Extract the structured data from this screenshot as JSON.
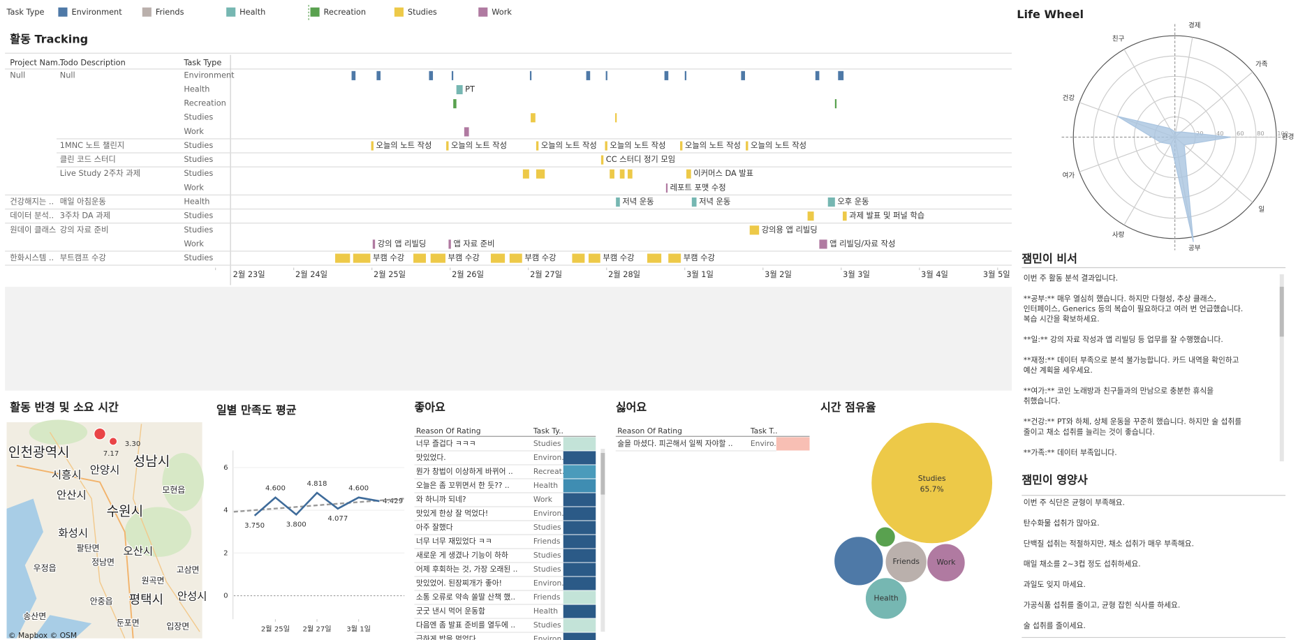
{
  "legend": {
    "title": "Task Type",
    "items": [
      {
        "name": "Environment",
        "color": "#4e79a7"
      },
      {
        "name": "Friends",
        "color": "#bab0ac"
      },
      {
        "name": "Health",
        "color": "#76b7b2"
      },
      {
        "name": "Recreation",
        "color": "#59a14f"
      },
      {
        "name": "Studies",
        "color": "#edc948"
      },
      {
        "name": "Work",
        "color": "#b07aa1"
      }
    ]
  },
  "gantt": {
    "title": "활동 Tracking",
    "columns": [
      "Project Nam..",
      "Todo Description",
      "Task Type"
    ],
    "xlim": [
      0,
      10
    ],
    "xticks": [
      {
        "value": 0,
        "label": "2월 23일"
      },
      {
        "value": 1,
        "label": "2월 24일"
      },
      {
        "value": 2,
        "label": "2월 25일"
      },
      {
        "value": 3,
        "label": "2월 26일"
      },
      {
        "value": 4,
        "label": "2월 27일"
      },
      {
        "value": 5,
        "label": "2월 28일"
      },
      {
        "value": 6,
        "label": "3월 1일"
      },
      {
        "value": 7,
        "label": "3월 2일"
      },
      {
        "value": 8,
        "label": "3월 3일"
      },
      {
        "value": 9,
        "label": "3월 4일"
      },
      {
        "value": 10,
        "label": "3월 5일"
      }
    ],
    "rows": [
      {
        "project": "Null",
        "todo": "Null",
        "type": "Environment",
        "bars": [
          {
            "start": 1.74,
            "end": 1.79
          },
          {
            "start": 2.06,
            "end": 2.11
          },
          {
            "start": 2.73,
            "end": 2.78
          },
          {
            "start": 3.02,
            "end": 3.04
          },
          {
            "start": 4.02,
            "end": 4.04
          },
          {
            "start": 4.74,
            "end": 4.79
          },
          {
            "start": 4.99,
            "end": 5.01
          },
          {
            "start": 5.74,
            "end": 5.79
          },
          {
            "start": 6.0,
            "end": 6.02
          },
          {
            "start": 6.72,
            "end": 6.77
          },
          {
            "start": 7.67,
            "end": 7.72
          },
          {
            "start": 7.96,
            "end": 8.03
          }
        ]
      },
      {
        "type": "Health",
        "bars": [
          {
            "start": 3.08,
            "end": 3.16,
            "label": "PT"
          }
        ]
      },
      {
        "type": "Recreation",
        "bars": [
          {
            "start": 3.04,
            "end": 3.08
          },
          {
            "start": 7.92,
            "end": 7.94
          }
        ]
      },
      {
        "type": "Studies",
        "bars": [
          {
            "start": 4.03,
            "end": 4.09
          },
          {
            "start": 5.11,
            "end": 5.13
          }
        ]
      },
      {
        "type": "Work",
        "bars": [
          {
            "start": 3.18,
            "end": 3.24
          }
        ]
      },
      {
        "todo": "1MNC 노트 챌린지",
        "type": "Studies",
        "bars": [
          {
            "start": 1.99,
            "end": 2.02,
            "label": "오늘의 노트 작성"
          },
          {
            "start": 2.95,
            "end": 2.98,
            "label": "오늘의 노트 작성"
          },
          {
            "start": 4.1,
            "end": 4.13,
            "label": "오늘의 노트 작성"
          },
          {
            "start": 4.98,
            "end": 5.01,
            "label": "오늘의 노트 작성"
          },
          {
            "start": 5.94,
            "end": 5.97,
            "label": "오늘의 노트 작성"
          },
          {
            "start": 6.78,
            "end": 6.81,
            "label": "오늘의 노트 작성"
          }
        ]
      },
      {
        "todo": "클린 코드 스터디",
        "type": "Studies",
        "bars": [
          {
            "start": 4.93,
            "end": 4.96,
            "label": "CC 스터디 정기 모임"
          }
        ]
      },
      {
        "todo": "Live Study 2주차 과제",
        "type": "Studies",
        "bars": [
          {
            "start": 3.93,
            "end": 4.01
          },
          {
            "start": 4.1,
            "end": 4.21
          },
          {
            "start": 5.04,
            "end": 5.1
          },
          {
            "start": 5.17,
            "end": 5.23
          },
          {
            "start": 5.27,
            "end": 5.33
          },
          {
            "start": 6.02,
            "end": 6.08,
            "label": "이커머스 DA 발표"
          }
        ]
      },
      {
        "type": "Work",
        "bars": [
          {
            "start": 5.76,
            "end": 5.78,
            "label": "레포트 포맷 수정"
          }
        ]
      },
      {
        "project": "건강해지는 ..",
        "todo": "매일 아침운동",
        "type": "Health",
        "bars": [
          {
            "start": 5.12,
            "end": 5.17,
            "label": "저녁 운동"
          },
          {
            "start": 6.09,
            "end": 6.15,
            "label": "저녁 운동"
          },
          {
            "start": 7.83,
            "end": 7.92,
            "label": "오후 운동"
          }
        ]
      },
      {
        "project": "데이터 분석..",
        "todo": "3주차 DA 과제",
        "type": "Studies",
        "bars": [
          {
            "start": 7.57,
            "end": 7.65
          },
          {
            "start": 8.02,
            "end": 8.07,
            "label": "과제 발표 및 퍼널 학습"
          }
        ]
      },
      {
        "project": "원데이 클래스",
        "todo": "강의 자료 준비",
        "type": "Studies",
        "bars": [
          {
            "start": 6.83,
            "end": 6.95,
            "label": "강의용 앱 리빌딩"
          }
        ]
      },
      {
        "type": "Work",
        "bars": [
          {
            "start": 2.01,
            "end": 2.04,
            "label": "강의 앱 리빌딩"
          },
          {
            "start": 2.98,
            "end": 3.01,
            "label": "앱 자료 준비"
          },
          {
            "start": 7.72,
            "end": 7.82,
            "label": "앱 리빌딩/자료 작성"
          }
        ]
      },
      {
        "project": "한화시스템 ..",
        "todo": "부트캠프 수강",
        "type": "Studies",
        "bars": [
          {
            "start": 1.53,
            "end": 1.72
          },
          {
            "start": 1.76,
            "end": 1.98,
            "label": "부캠 수강"
          },
          {
            "start": 2.53,
            "end": 2.69
          },
          {
            "start": 2.75,
            "end": 2.94,
            "label": "부캠 수강"
          },
          {
            "start": 3.52,
            "end": 3.7
          },
          {
            "start": 3.76,
            "end": 3.92,
            "label": "부캠 수강"
          },
          {
            "start": 4.56,
            "end": 4.72
          },
          {
            "start": 4.77,
            "end": 4.92,
            "label": "부캠 수강"
          },
          {
            "start": 5.52,
            "end": 5.7
          },
          {
            "start": 5.79,
            "end": 5.95,
            "label": "부캠 수강"
          }
        ]
      }
    ]
  },
  "radar": {
    "title": "Life Wheel",
    "axes": [
      "경제",
      "가족",
      "환경",
      "일",
      "공부",
      "사랑",
      "여가",
      "건강",
      "친구"
    ],
    "values": [
      5,
      8,
      55,
      12,
      105,
      8,
      15,
      60,
      10
    ],
    "color": "#a9c4e0",
    "rlim": [
      0,
      100
    ],
    "rticks": [
      20,
      40,
      60,
      80,
      100
    ]
  },
  "secretary": {
    "title": "잼민이 비서",
    "paragraphs": [
      [
        "이번 주 활동 분석 결과입니다."
      ],
      [
        "**공부:**  매우 열심히 했습니다. 하지만 다형성, 추상 클래스,",
        "인터페이스, Generics 등의 복습이 필요하다고 여러 번 언급했습니다.",
        "복습 시간을 확보하세요."
      ],
      [
        "**일:**  강의 자료 작성과 앱 리빌딩 등 업무를  잘 수행했습니다."
      ],
      [
        "**재정:**  데이터 부족으로 분석 불가능합니다. 카드 내역을 확인하고",
        "예산 계획을 세우세요."
      ],
      [
        "**여가:**  코인 노래방과 친구들과의 만남으로 충분한 휴식을",
        "취했습니다."
      ],
      [
        "**건강:**  PT와 하체, 상체 운동을 꾸준히 했습니다.  하지만 술 섭취를",
        "줄이고 채소 섭취를 늘리는 것이 좋습니다."
      ],
      [
        "**가족:**  데이터 부족입니다."
      ]
    ]
  },
  "nutritionist": {
    "title": "잼민이 영양사",
    "lines": [
      "이번 주 식단은 균형이 부족해요.",
      "탄수화물 섭취가 많아요.",
      "단백질 섭취는 적절하지만,  채소 섭취가 매우 부족해요.",
      "매일 채소를 2~3컵 정도 섭취하세요.",
      "과일도 잊지 마세요.",
      "가공식품 섭취를 줄이고,  균형 잡힌 식사를 하세요.",
      "술 섭취를 줄이세요."
    ]
  },
  "map": {
    "title": "활동 반경 및 소요 시간",
    "places": [
      "인천광역시",
      "시흥시",
      "안양시",
      "성남시",
      "안산시",
      "수원시",
      "화성시",
      "모현읍",
      "팔탄면",
      "우정읍",
      "오산시",
      "정남면",
      "원곡면",
      "평택시",
      "안성시",
      "송산면",
      "안중읍",
      "둔포면",
      "입장면",
      "고삼면"
    ],
    "markers": [
      {
        "value": 3.3,
        "label": "3.30"
      },
      {
        "value": 7.17,
        "label": "7.17"
      }
    ],
    "credit": "© Mapbox © OSM"
  },
  "satisfaction": {
    "title": "일별 만족도 평균",
    "x": [
      1,
      2,
      3,
      4,
      5,
      6,
      7
    ],
    "values": [
      3.75,
      4.6,
      3.8,
      4.818,
      4.077,
      4.6,
      4.429
    ],
    "value_labels": [
      "3.750",
      "4.600",
      "3.800",
      "4.818",
      "4.077",
      "4.600",
      "4.429"
    ],
    "color": "#3e6b9a",
    "xlim": [
      0,
      8.2
    ],
    "xticks": [
      {
        "value": 2,
        "label": "2월 25일"
      },
      {
        "value": 4,
        "label": "2월 27일"
      },
      {
        "value": 6,
        "label": "3월 1일"
      }
    ],
    "ylim": [
      -1.1,
      6.8
    ],
    "yticks": [
      0,
      2,
      4,
      6
    ],
    "trend": {
      "x": [
        0,
        8.2
      ],
      "values": [
        3.93,
        4.55
      ]
    }
  },
  "likes": {
    "title": "좋아요",
    "columns": [
      "Reason Of Rating",
      "Task Ty.."
    ],
    "rows": [
      {
        "reason": "너무 즐겁다 ㅋㅋㅋ",
        "type": "Studies",
        "color": "#c3e3d8"
      },
      {
        "reason": "맛있었다.",
        "type": "Environ..",
        "color": "#2b5a87"
      },
      {
        "reason": "뭔가 창법이 이상하게 바뀌어 ..",
        "type": "Recreat..",
        "color": "#4a9bbb"
      },
      {
        "reason": "오늘은 좀 꼬뮈면서 한 듯?? ..",
        "type": "Health",
        "color": "#3f8db2"
      },
      {
        "reason": "와 하니까 되네?",
        "type": "Work",
        "color": "#2b5a87"
      },
      {
        "reason": "맛있게 한상 잘 먹었다!",
        "type": "Environ..",
        "color": "#2b5a87"
      },
      {
        "reason": "아주 잘했다",
        "type": "Studies",
        "color": "#2b5a87"
      },
      {
        "reason": "너무 너무 재밌었다 ㅋㅋ",
        "type": "Friends",
        "color": "#2b5a87"
      },
      {
        "reason": "새로운 게 생겼나 기능이 하하",
        "type": "Studies",
        "color": "#2b5a87"
      },
      {
        "reason": "어제 후회하는 것, 가장 오래된 ..",
        "type": "Studies",
        "color": "#2b5a87"
      },
      {
        "reason": "맛있었어. 된장찌개가 좋아!",
        "type": "Environ..",
        "color": "#2b5a87"
      },
      {
        "reason": "소통 오류로 약속 쏠딸 산책 했..",
        "type": "Friends",
        "color": "#c3e3d8"
      },
      {
        "reason": "굿굿 낸시 먹어 운동함",
        "type": "Health",
        "color": "#2b5a87"
      },
      {
        "reason": "다음엔 좀 발표 준비를 열두에 ..",
        "type": "Studies",
        "color": "#c3e3d8"
      },
      {
        "reason": "급하게 밥을 먹었다",
        "type": "Environ..",
        "color": "#2b5a87"
      }
    ]
  },
  "dislikes": {
    "title": "싫어요",
    "columns": [
      "Reason Of Rating",
      "Task T.."
    ],
    "rows": [
      {
        "reason": "술을 마셨다. 피곤해서 일찍 자야할 ..",
        "type": "Enviro..",
        "color": "#f8bfb4"
      }
    ]
  },
  "share": {
    "title": "시간 점유율",
    "bubbles": [
      {
        "name": "Studies",
        "value": 65.7,
        "value_label": "65.7%",
        "color": "#edc948"
      },
      {
        "value": 10.8,
        "color": "#4e79a7"
      },
      {
        "value": 1.8,
        "color": "#59a14f"
      },
      {
        "name": "Friends",
        "value": 7.7,
        "color": "#bab0ac"
      },
      {
        "name": "Work",
        "value": 6.5,
        "color": "#b07aa1"
      },
      {
        "name": "Health",
        "value": 7.7,
        "color": "#76b7b2"
      }
    ]
  }
}
